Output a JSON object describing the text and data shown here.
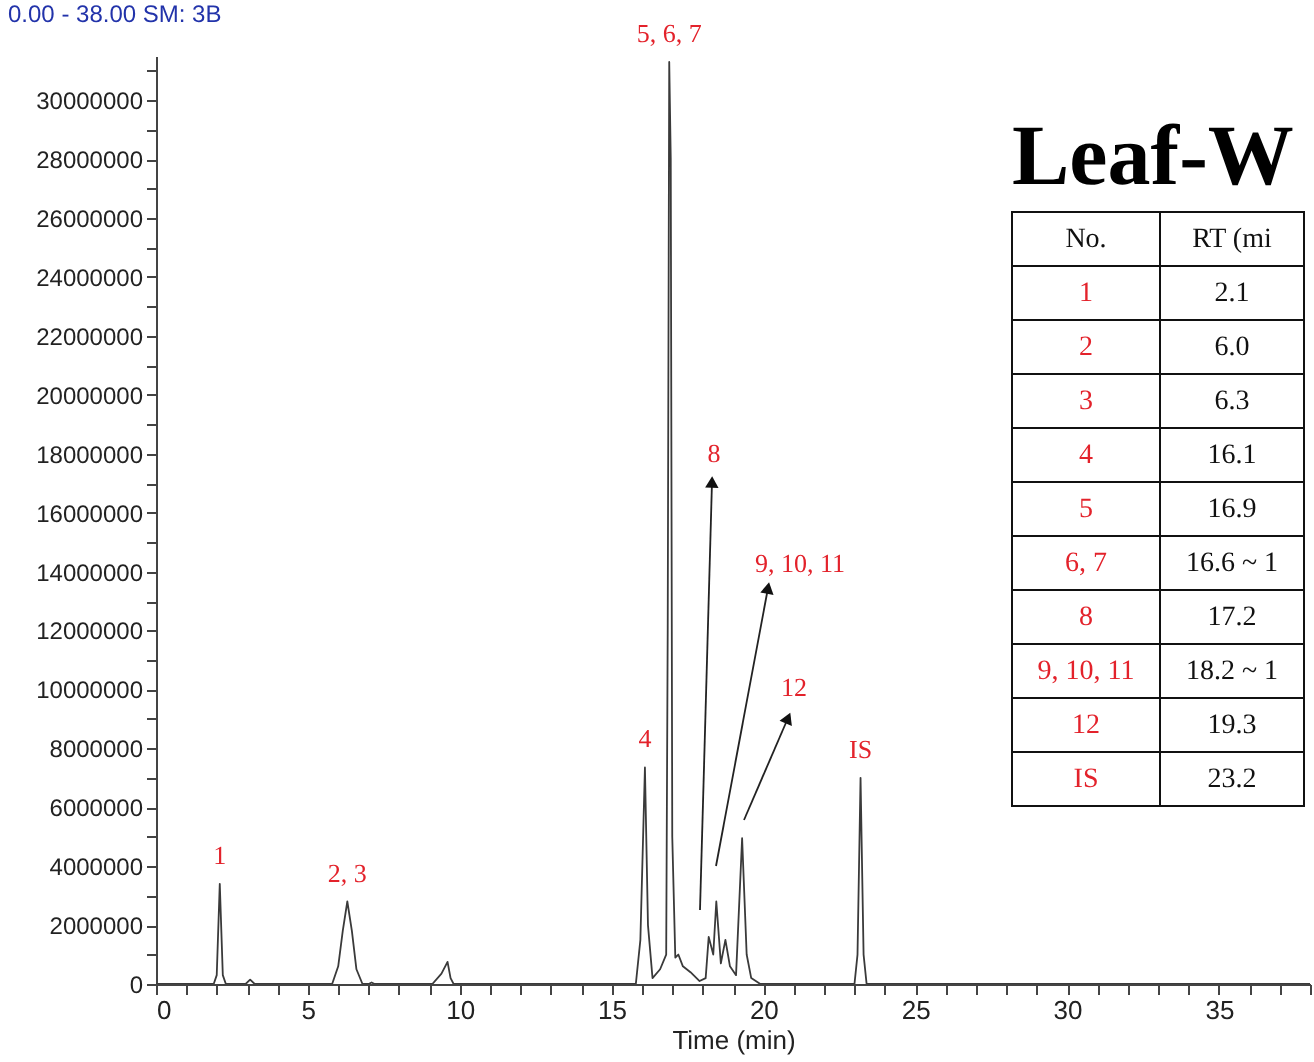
{
  "chart_data": {
    "type": "line",
    "title": "Leaf-W",
    "xlabel": "Time (min)",
    "x": [
      0,
      1.9,
      2.0,
      2.1,
      2.2,
      2.3,
      2.95,
      3.1,
      3.25,
      5.8,
      6.0,
      6.15,
      6.3,
      6.45,
      6.6,
      6.8,
      7.0,
      7.1,
      7.2,
      9.1,
      9.4,
      9.6,
      9.7,
      9.8,
      15.8,
      15.95,
      16.1,
      16.2,
      16.35,
      16.6,
      16.8,
      16.85,
      16.9,
      16.95,
      17.0,
      17.1,
      17.2,
      17.35,
      17.6,
      17.9,
      18.1,
      18.2,
      18.35,
      18.45,
      18.6,
      18.75,
      18.9,
      19.1,
      19.3,
      19.45,
      19.6,
      19.9,
      23.0,
      23.1,
      23.2,
      23.3,
      23.4,
      38
    ],
    "series": [
      {
        "color": "#3a3a3a",
        "values": [
          0,
          0,
          300000,
          3400000,
          300000,
          0,
          0,
          150000,
          0,
          0,
          600000,
          1800000,
          2800000,
          1800000,
          500000,
          0,
          0,
          50000,
          0,
          0,
          350000,
          750000,
          200000,
          0,
          0,
          1500000,
          7350000,
          2000000,
          200000,
          500000,
          1000000,
          12000000,
          31300000,
          28000000,
          5000000,
          900000,
          1000000,
          600000,
          400000,
          100000,
          200000,
          1600000,
          1000000,
          2800000,
          700000,
          1500000,
          600000,
          300000,
          4950000,
          1000000,
          200000,
          0,
          0,
          1000000,
          7000000,
          1000000,
          0,
          0
        ]
      }
    ],
    "xlim": [
      0,
      38
    ],
    "ylim": [
      0,
      31500000
    ],
    "xticks": [
      0,
      {
        "value": 1,
        "label": null
      },
      {
        "value": 2,
        "label": null
      },
      {
        "value": 3,
        "label": null
      },
      {
        "value": 4,
        "label": null
      },
      5,
      {
        "value": 6,
        "label": null
      },
      {
        "value": 7,
        "label": null
      },
      {
        "value": 8,
        "label": null
      },
      {
        "value": 9,
        "label": null
      },
      10,
      {
        "value": 11,
        "label": null
      },
      {
        "value": 12,
        "label": null
      },
      {
        "value": 13,
        "label": null
      },
      {
        "value": 14,
        "label": null
      },
      15,
      {
        "value": 16,
        "label": null
      },
      {
        "value": 17,
        "label": null
      },
      {
        "value": 18,
        "label": null
      },
      {
        "value": 19,
        "label": null
      },
      20,
      {
        "value": 21,
        "label": null
      },
      {
        "value": 22,
        "label": null
      },
      {
        "value": 23,
        "label": null
      },
      {
        "value": 24,
        "label": null
      },
      25,
      {
        "value": 26,
        "label": null
      },
      {
        "value": 27,
        "label": null
      },
      {
        "value": 28,
        "label": null
      },
      {
        "value": 29,
        "label": null
      },
      30,
      {
        "value": 31,
        "label": null
      },
      {
        "value": 32,
        "label": null
      },
      {
        "value": 33,
        "label": null
      },
      {
        "value": 34,
        "label": null
      },
      35,
      {
        "value": 36,
        "label": null
      },
      {
        "value": 37,
        "label": null
      },
      {
        "value": 38,
        "label": null
      }
    ],
    "yticks": [
      0,
      {
        "value": 1000000,
        "label": null
      },
      2000000,
      {
        "value": 3000000,
        "label": null
      },
      4000000,
      {
        "value": 5000000,
        "label": null
      },
      6000000,
      {
        "value": 7000000,
        "label": null
      },
      8000000,
      {
        "value": 9000000,
        "label": null
      },
      10000000,
      {
        "value": 11000000,
        "label": null
      },
      12000000,
      {
        "value": 13000000,
        "label": null
      },
      14000000,
      {
        "value": 15000000,
        "label": null
      },
      16000000,
      {
        "value": 17000000,
        "label": null
      },
      18000000,
      {
        "value": 19000000,
        "label": null
      },
      20000000,
      {
        "value": 21000000,
        "label": null
      },
      22000000,
      {
        "value": 23000000,
        "label": null
      },
      24000000,
      {
        "value": 25000000,
        "label": null
      },
      26000000,
      {
        "value": 27000000,
        "label": null
      },
      28000000,
      {
        "value": 29000000,
        "label": null
      },
      30000000,
      {
        "value": 31000000,
        "label": null
      }
    ],
    "grid": false,
    "annotations": [
      {
        "text": "1",
        "x": 2.1,
        "y": 3400000
      },
      {
        "text": "2, 3",
        "x": 6.3,
        "y": 2800000
      },
      {
        "text": "4",
        "x": 16.1,
        "y": 7350000
      },
      {
        "text": "5, 6, 7",
        "x": 16.9,
        "y": 31300000
      },
      {
        "text": "IS",
        "x": 23.2,
        "y": 7000000
      },
      "0.00 - 38.00   SM: 3B",
      "8",
      "9, 10, 11",
      "12",
      "No.",
      "RT (mi",
      "1",
      "2.1",
      "2",
      "6.0",
      "3",
      "6.3",
      "4",
      "16.1",
      "5",
      "16.9",
      "6, 7",
      "16.6 ~ 1",
      "8",
      "17.2",
      "9, 10, 11",
      "18.2 ~ 1",
      "12",
      "19.3",
      "IS",
      "23.2"
    ]
  }
}
